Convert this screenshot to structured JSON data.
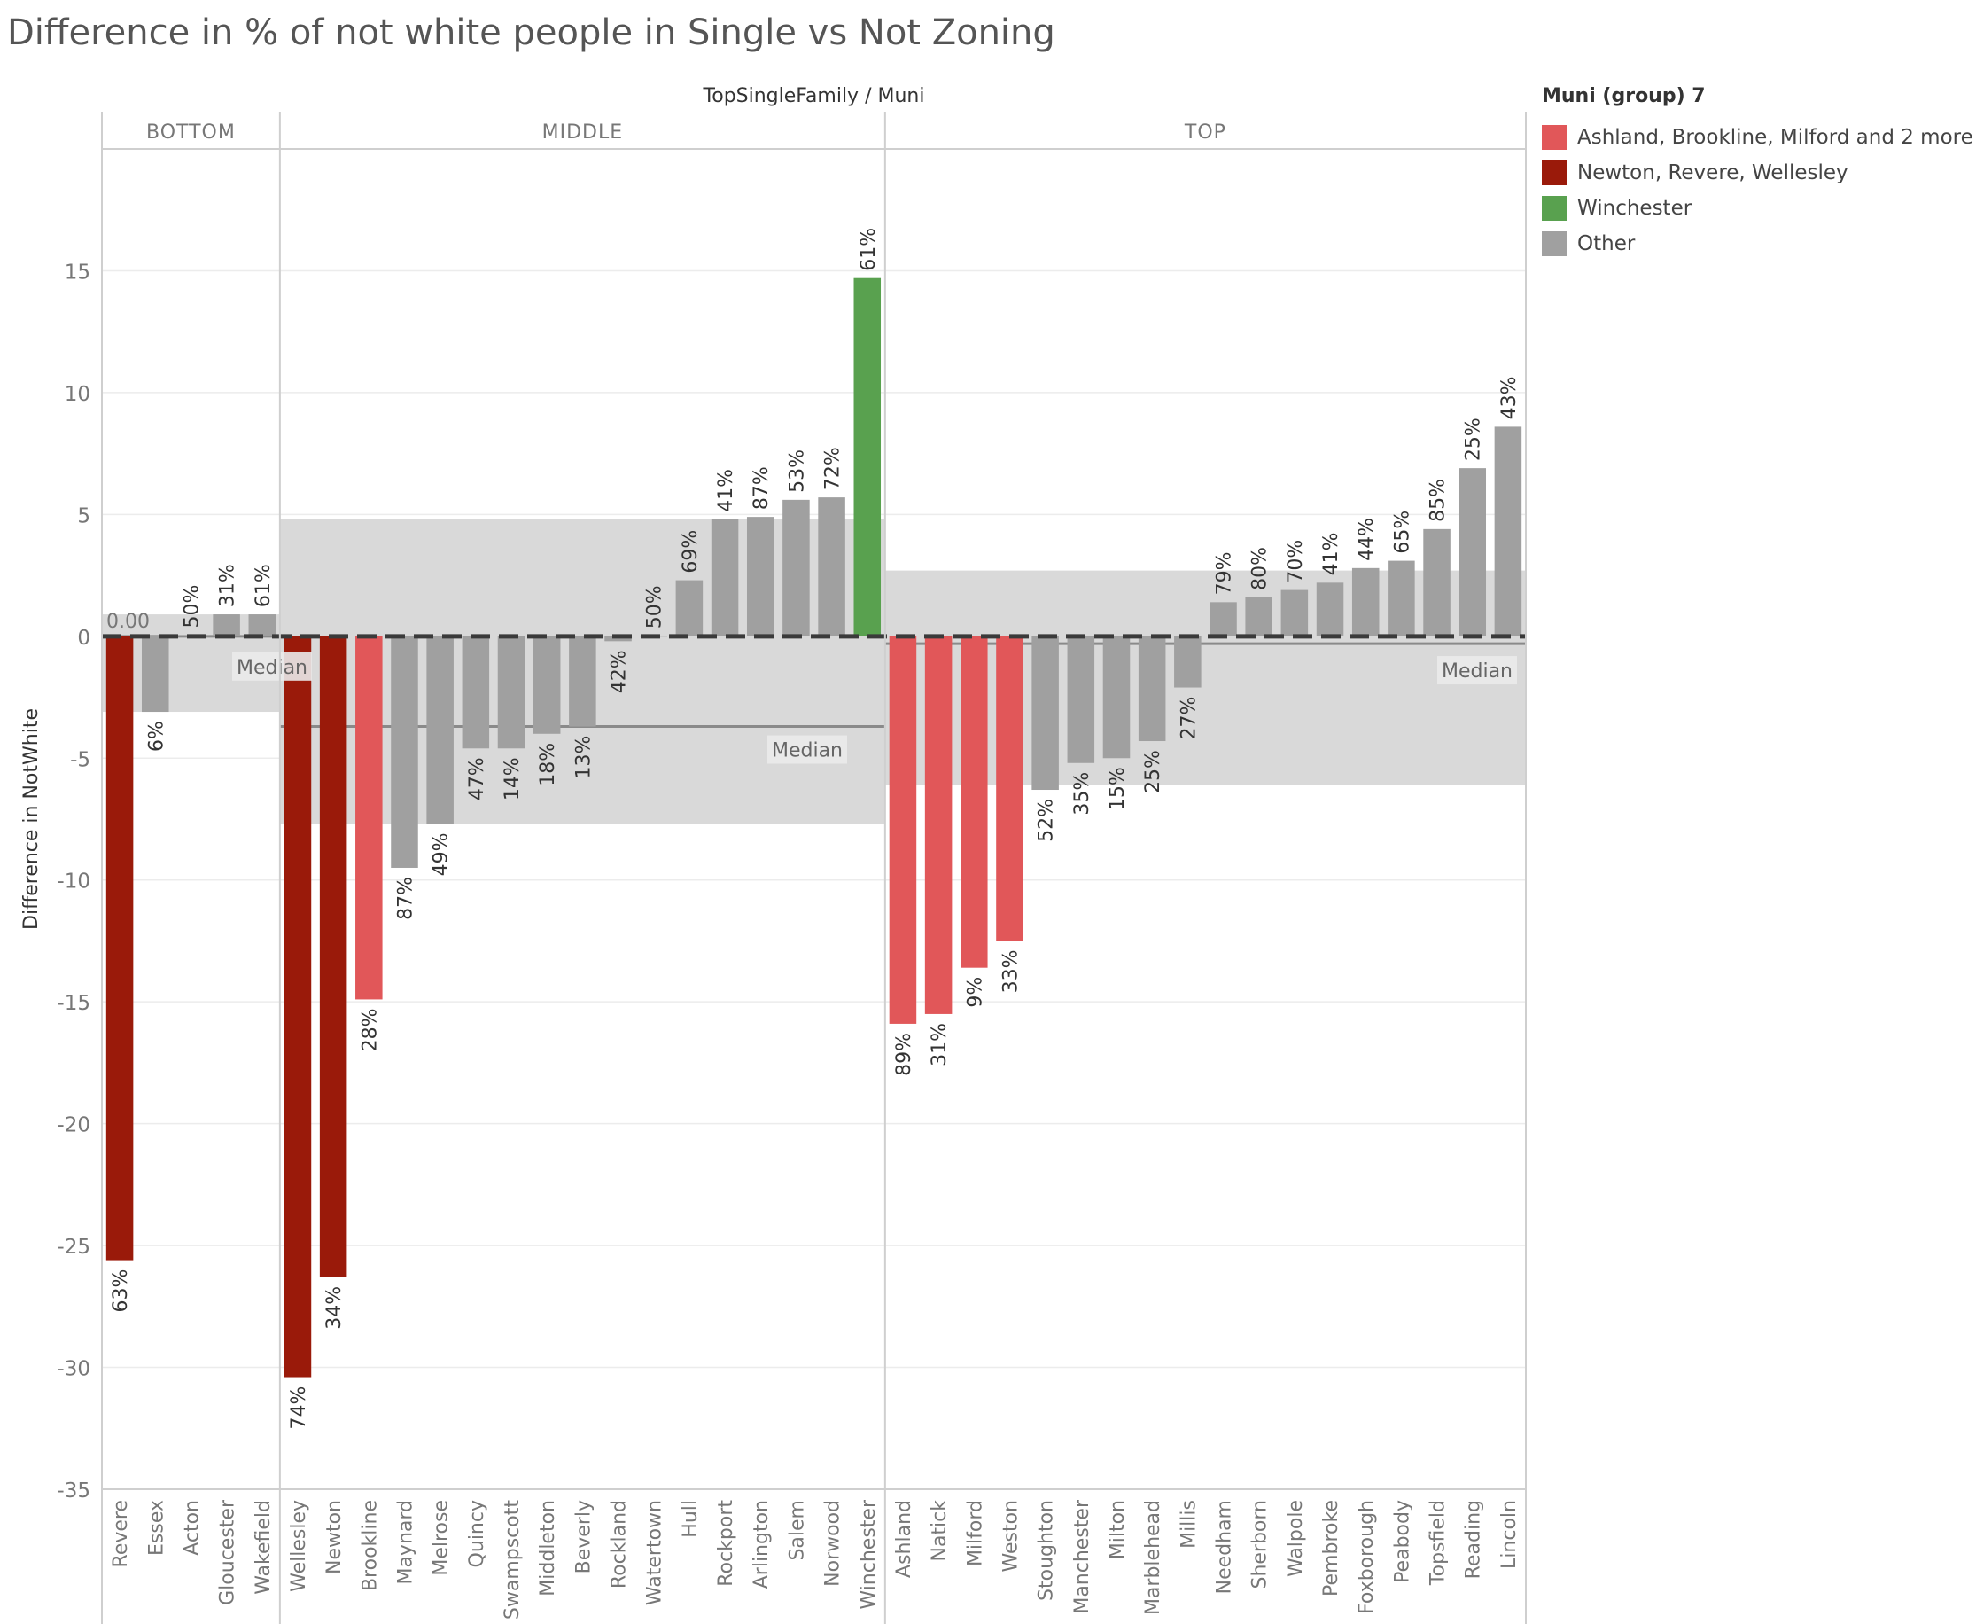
{
  "title": "Difference in % of not white people in Single  vs Not Zoning",
  "chart_data": {
    "type": "bar",
    "column_header": "TopSingleFamily / Muni",
    "ylabel": "Difference in NotWhite",
    "ylim": [
      -35,
      20
    ],
    "yticks": [
      15,
      10,
      5,
      0,
      -5,
      -10,
      -15,
      -20,
      -25,
      -30,
      -35
    ],
    "grid": true,
    "legend": {
      "title": "Muni (group) 7",
      "position": "right",
      "items": [
        {
          "key": "highlight",
          "label": "Ashland, Brookline, Milford and 2 more",
          "color": "#e15759"
        },
        {
          "key": "dark",
          "label": "Newton, Revere, Wellesley",
          "color": "#9a1a0a"
        },
        {
          "key": "green",
          "label": "Winchester",
          "color": "#59a14f"
        },
        {
          "key": "other",
          "label": "Other",
          "color": "#a0a0a0"
        }
      ]
    },
    "reference_label": "Median",
    "zero_label": "0.00",
    "panes": [
      {
        "name": "BOTTOM",
        "median": 0.0,
        "band": [
          -3.1,
          0.9
        ],
        "bars": [
          {
            "muni": "Revere",
            "value": -25.6,
            "label": "63%",
            "group": "dark"
          },
          {
            "muni": "Essex",
            "value": -3.1,
            "label": "6%",
            "group": "other"
          },
          {
            "muni": "Acton",
            "value": 0.05,
            "label": "50%",
            "group": "other"
          },
          {
            "muni": "Gloucester",
            "value": 0.9,
            "label": "31%",
            "group": "other"
          },
          {
            "muni": "Wakefield",
            "value": 0.9,
            "label": "61%",
            "group": "other"
          }
        ]
      },
      {
        "name": "MIDDLE",
        "median": -3.7,
        "band": [
          -7.7,
          4.8
        ],
        "bars": [
          {
            "muni": "Wellesley",
            "value": -30.4,
            "label": "74%",
            "group": "dark"
          },
          {
            "muni": "Newton",
            "value": -26.3,
            "label": "34%",
            "group": "dark"
          },
          {
            "muni": "Brookline",
            "value": -14.9,
            "label": "28%",
            "group": "highlight"
          },
          {
            "muni": "Maynard",
            "value": -9.5,
            "label": "87%",
            "group": "other"
          },
          {
            "muni": "Melrose",
            "value": -7.7,
            "label": "49%",
            "group": "other"
          },
          {
            "muni": "Quincy",
            "value": -4.6,
            "label": "47%",
            "group": "other"
          },
          {
            "muni": "Swampscott",
            "value": -4.6,
            "label": "14%",
            "group": "other"
          },
          {
            "muni": "Middleton",
            "value": -4.0,
            "label": "18%",
            "group": "other"
          },
          {
            "muni": "Beverly",
            "value": -3.7,
            "label": "13%",
            "group": "other"
          },
          {
            "muni": "Rockland",
            "value": -0.2,
            "label": "42%",
            "group": "other"
          },
          {
            "muni": "Watertown",
            "value": 0.02,
            "label": "50%",
            "group": "other"
          },
          {
            "muni": "Hull",
            "value": 2.3,
            "label": "69%",
            "group": "other"
          },
          {
            "muni": "Rockport",
            "value": 4.8,
            "label": "41%",
            "group": "other"
          },
          {
            "muni": "Arlington",
            "value": 4.9,
            "label": "87%",
            "group": "other"
          },
          {
            "muni": "Salem",
            "value": 5.6,
            "label": "53%",
            "group": "other"
          },
          {
            "muni": "Norwood",
            "value": 5.7,
            "label": "72%",
            "group": "other"
          },
          {
            "muni": "Winchester",
            "value": 14.7,
            "label": "61%",
            "group": "green"
          }
        ]
      },
      {
        "name": "TOP",
        "median": -0.3,
        "band": [
          -6.1,
          2.7
        ],
        "bars": [
          {
            "muni": "Ashland",
            "value": -15.9,
            "label": "89%",
            "group": "highlight"
          },
          {
            "muni": "Natick",
            "value": -15.5,
            "label": "31%",
            "group": "highlight"
          },
          {
            "muni": "Milford",
            "value": -13.6,
            "label": "9%",
            "group": "highlight"
          },
          {
            "muni": "Weston",
            "value": -12.5,
            "label": "33%",
            "group": "highlight"
          },
          {
            "muni": "Stoughton",
            "value": -6.3,
            "label": "52%",
            "group": "other"
          },
          {
            "muni": "Manchester",
            "value": -5.2,
            "label": "35%",
            "group": "other"
          },
          {
            "muni": "Milton",
            "value": -5.0,
            "label": "15%",
            "group": "other"
          },
          {
            "muni": "Marblehead",
            "value": -4.3,
            "label": "25%",
            "group": "other"
          },
          {
            "muni": "Millis",
            "value": -2.1,
            "label": "27%",
            "group": "other"
          },
          {
            "muni": "Needham",
            "value": 1.4,
            "label": "79%",
            "group": "other"
          },
          {
            "muni": "Sherborn",
            "value": 1.6,
            "label": "80%",
            "group": "other"
          },
          {
            "muni": "Walpole",
            "value": 1.9,
            "label": "70%",
            "group": "other"
          },
          {
            "muni": "Pembroke",
            "value": 2.2,
            "label": "41%",
            "group": "other"
          },
          {
            "muni": "Foxborough",
            "value": 2.8,
            "label": "44%",
            "group": "other"
          },
          {
            "muni": "Peabody",
            "value": 3.1,
            "label": "65%",
            "group": "other"
          },
          {
            "muni": "Topsfield",
            "value": 4.4,
            "label": "85%",
            "group": "other"
          },
          {
            "muni": "Reading",
            "value": 6.9,
            "label": "25%",
            "group": "other"
          },
          {
            "muni": "Lincoln",
            "value": 8.6,
            "label": "43%",
            "group": "other"
          }
        ]
      }
    ]
  }
}
